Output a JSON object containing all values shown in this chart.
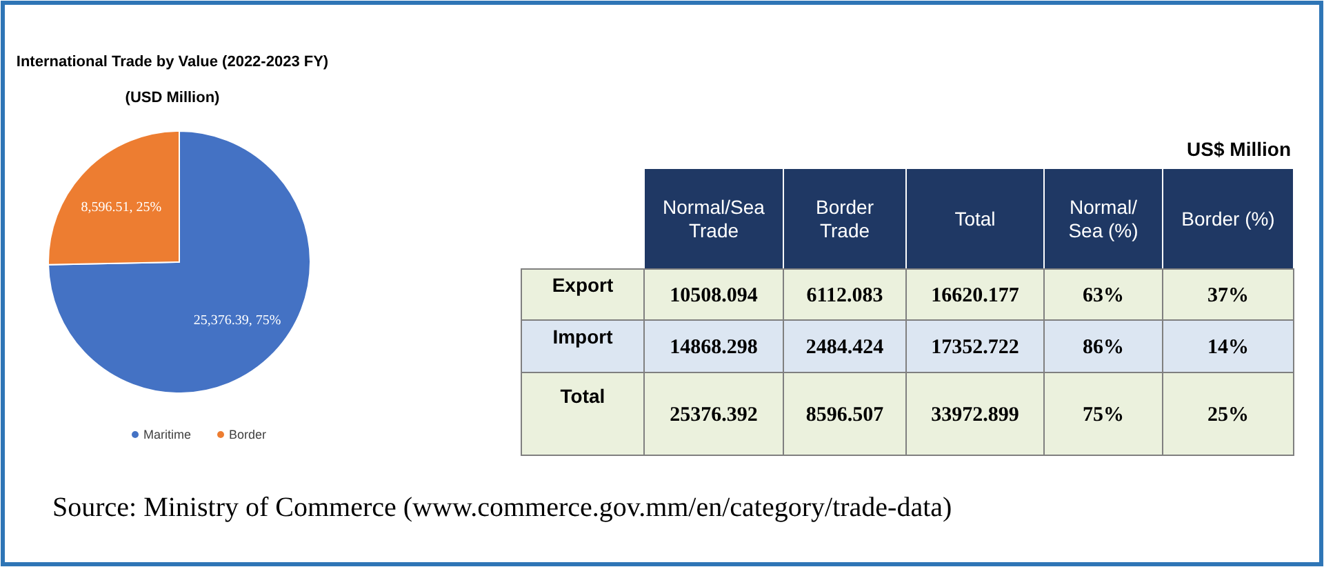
{
  "chart_data": [
    {
      "type": "pie",
      "title": "International Trade by Value (2022-2023 FY)",
      "subtitle": "(USD Million)",
      "categories": [
        "Maritime",
        "Border"
      ],
      "values": [
        25376.39,
        8596.51
      ],
      "colors": [
        "#4472c4",
        "#ed7d31"
      ],
      "value_labels": [
        "25,376.39, 75%",
        "8,596.51, 25%"
      ],
      "legend": "bottom"
    },
    {
      "type": "other",
      "title": "US$ Million",
      "categories": [
        "Normal/Sea Trade",
        "Border Trade",
        "Total",
        "Normal/ Sea (%)",
        "Border (%)"
      ],
      "y_categories": [
        "Export",
        "Import",
        "Total"
      ],
      "cell_labels": [
        [
          "10508.094",
          "6112.083",
          "16620.177",
          "63%",
          "37%"
        ],
        [
          "14868.298",
          "2484.424",
          "17352.722",
          "86%",
          "14%"
        ],
        [
          "25376.392",
          "8596.507",
          "33972.899",
          "75%",
          "25%"
        ]
      ],
      "annotations": [
        "Source: Ministry of Commerce (www.commerce.gov.mm/en/category/trade-data)"
      ]
    }
  ]
}
